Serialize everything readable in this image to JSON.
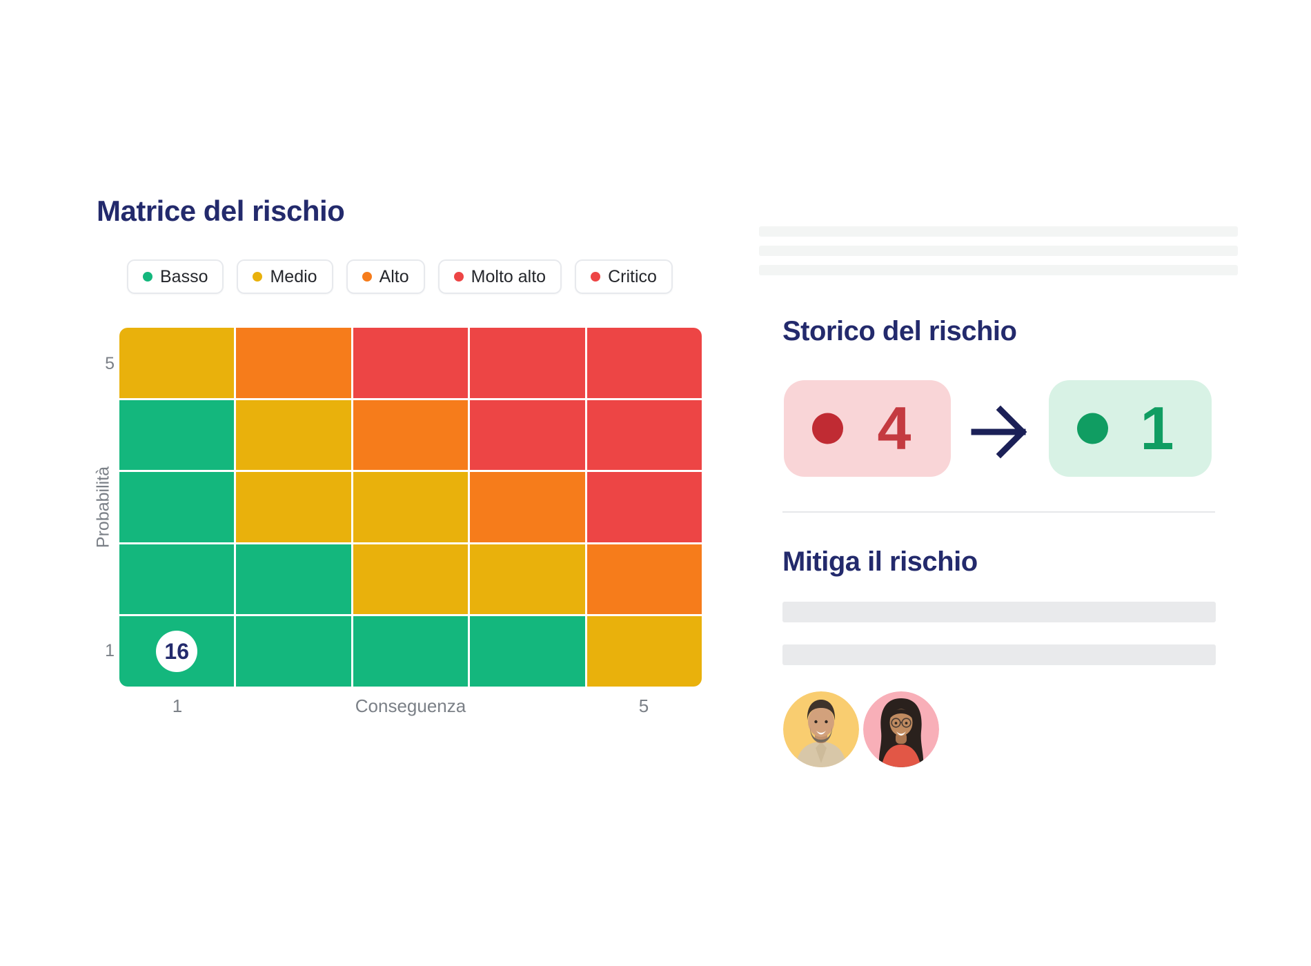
{
  "colors": {
    "heading": "#232a6c",
    "axis_text": "#7b8087",
    "legend_text": "#25272c",
    "basso": "#14b77d",
    "medio": "#e9b10c",
    "alto": "#f67c1b",
    "molto_alto": "#ed4545",
    "critico": "#ed4545",
    "arrow": "#1b2057",
    "history_from_bg": "#f9d5d7",
    "history_from_fg": "#c43a40",
    "history_from_dot": "#c02b33",
    "history_to_bg": "#d8f2e5",
    "history_to_fg": "#109d62",
    "history_to_dot": "#109d62",
    "placeholder_bar": "#e9eaec",
    "divider": "#e6e7ea",
    "badge_bg": "#ffffff",
    "avatar_1_bg": "#f9cd70",
    "avatar_2_bg": "#f8afb8"
  },
  "matrix_panel": {
    "title": "Matrice del rischio",
    "legend": [
      {
        "label": "Basso",
        "color_key": "basso"
      },
      {
        "label": "Medio",
        "color_key": "medio"
      },
      {
        "label": "Alto",
        "color_key": "alto"
      },
      {
        "label": "Molto alto",
        "color_key": "molto_alto"
      },
      {
        "label": "Critico",
        "color_key": "critico"
      }
    ]
  },
  "chart_data": {
    "type": "heatmap",
    "title": "Matrice del rischio",
    "xlabel": "Conseguenza",
    "ylabel": "Probabilità",
    "x_range": [
      1,
      5
    ],
    "y_range": [
      1,
      5
    ],
    "x_tick_labels": [
      "1",
      "5"
    ],
    "y_tick_labels": [
      "5",
      "1"
    ],
    "grid": "white 3px gaps between cells",
    "legend_position": "top",
    "legend_entries": [
      "Basso",
      "Medio",
      "Alto",
      "Molto alto",
      "Critico"
    ],
    "rows_order": "probability 5 (top) to 1 (bottom)",
    "levels": [
      [
        "medio",
        "alto",
        "molto_alto",
        "molto_alto",
        "molto_alto"
      ],
      [
        "basso",
        "medio",
        "alto",
        "molto_alto",
        "molto_alto"
      ],
      [
        "basso",
        "medio",
        "medio",
        "alto",
        "molto_alto"
      ],
      [
        "basso",
        "basso",
        "medio",
        "medio",
        "alto"
      ],
      [
        "basso",
        "basso",
        "basso",
        "basso",
        "medio"
      ]
    ],
    "annotation": {
      "probabilita": 1,
      "conseguenza": 1,
      "value": "16"
    }
  },
  "history_panel": {
    "title": "Storico del rischio",
    "from_value": "4",
    "to_value": "1",
    "arrow_icon": "arrow-right"
  },
  "mitigate_panel": {
    "title": "Mitiga il rischio",
    "placeholder_bars": 2,
    "avatars": [
      {
        "name": "male team member",
        "background": "#f9cd70"
      },
      {
        "name": "female team member",
        "background": "#f8afb8"
      }
    ]
  }
}
